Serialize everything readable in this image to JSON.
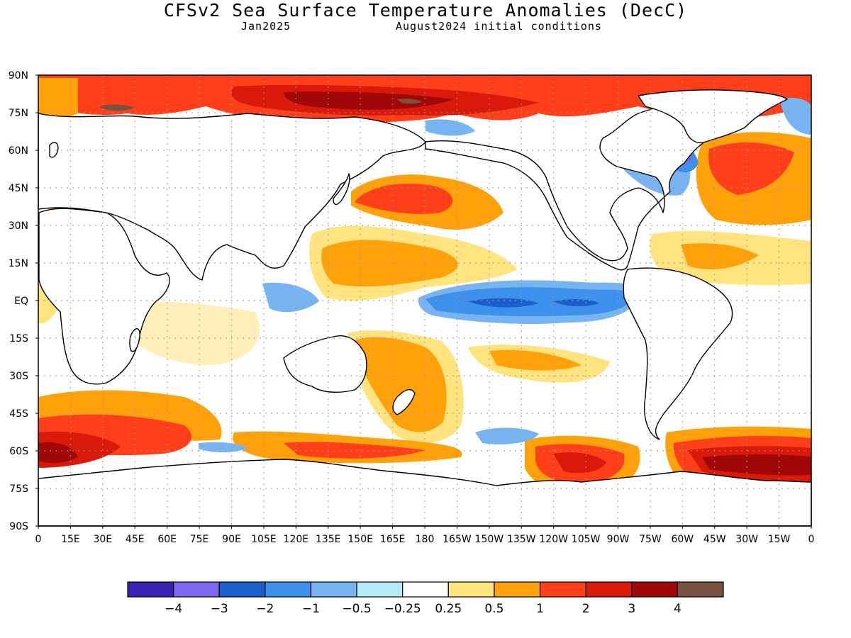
{
  "header": {
    "title": "CFSv2 Sea Surface Temperature Anomalies (DecC)",
    "forecast_month": "Jan2025",
    "initial_conditions": "August2024 initial conditions"
  },
  "map": {
    "lat_labels": [
      "90N",
      "75N",
      "60N",
      "45N",
      "30N",
      "15N",
      "EQ",
      "15S",
      "30S",
      "45S",
      "60S",
      "75S",
      "90S"
    ],
    "lon_labels": [
      "0",
      "15E",
      "30E",
      "45E",
      "60E",
      "75E",
      "90E",
      "105E",
      "120E",
      "135E",
      "150E",
      "165E",
      "180",
      "165W",
      "150W",
      "135W",
      "120W",
      "105W",
      "90W",
      "75W",
      "60W",
      "45W",
      "30W",
      "15W",
      "0"
    ]
  },
  "colorbar": {
    "colors": [
      "#3a1fb3",
      "#7b68ee",
      "#1a5fcc",
      "#3c91ec",
      "#78b4f2",
      "#b3ecf7",
      "#ffffff",
      "#fee37e",
      "#ffa10a",
      "#ff3f1a",
      "#d91a0a",
      "#a00808",
      "#7a5040"
    ],
    "labels": [
      "−4",
      "−3",
      "−2",
      "−1",
      "−0.5",
      "−0.25",
      "0.25",
      "0.5",
      "1",
      "2",
      "3",
      "4"
    ]
  }
}
